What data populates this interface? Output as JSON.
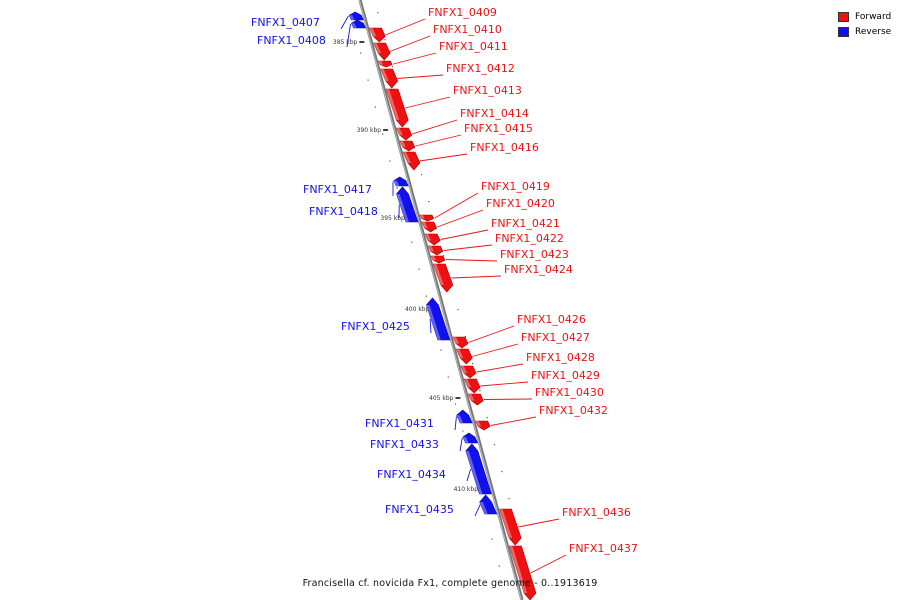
{
  "legend": {
    "forward_label": "Forward",
    "reverse_label": "Reverse",
    "forward_color": "#ee1111",
    "reverse_color": "#1111ee"
  },
  "caption": "Francisella cf. novicida Fx1, complete genome - 0..1913619",
  "ticks": [
    "385 kbp",
    "390 kbp",
    "395 kbp",
    "400 kbp",
    "405 kbp",
    "410 kbp"
  ],
  "genes": [
    {
      "name": "FNFX1_0407",
      "strand": "reverse"
    },
    {
      "name": "FNFX1_0408",
      "strand": "reverse"
    },
    {
      "name": "FNFX1_0409",
      "strand": "forward"
    },
    {
      "name": "FNFX1_0410",
      "strand": "forward"
    },
    {
      "name": "FNFX1_0411",
      "strand": "forward"
    },
    {
      "name": "FNFX1_0412",
      "strand": "forward"
    },
    {
      "name": "FNFX1_0413",
      "strand": "forward"
    },
    {
      "name": "FNFX1_0414",
      "strand": "forward"
    },
    {
      "name": "FNFX1_0415",
      "strand": "forward"
    },
    {
      "name": "FNFX1_0416",
      "strand": "forward"
    },
    {
      "name": "FNFX1_0417",
      "strand": "reverse"
    },
    {
      "name": "FNFX1_0418",
      "strand": "reverse"
    },
    {
      "name": "FNFX1_0419",
      "strand": "forward"
    },
    {
      "name": "FNFX1_0420",
      "strand": "forward"
    },
    {
      "name": "FNFX1_0421",
      "strand": "forward"
    },
    {
      "name": "FNFX1_0422",
      "strand": "forward"
    },
    {
      "name": "FNFX1_0423",
      "strand": "forward"
    },
    {
      "name": "FNFX1_0424",
      "strand": "forward"
    },
    {
      "name": "FNFX1_0425",
      "strand": "reverse"
    },
    {
      "name": "FNFX1_0426",
      "strand": "forward"
    },
    {
      "name": "FNFX1_0427",
      "strand": "forward"
    },
    {
      "name": "FNFX1_0428",
      "strand": "forward"
    },
    {
      "name": "FNFX1_0429",
      "strand": "forward"
    },
    {
      "name": "FNFX1_0430",
      "strand": "forward"
    },
    {
      "name": "FNFX1_0431",
      "strand": "reverse"
    },
    {
      "name": "FNFX1_0432",
      "strand": "forward"
    },
    {
      "name": "FNFX1_0433",
      "strand": "reverse"
    },
    {
      "name": "FNFX1_0434",
      "strand": "reverse"
    },
    {
      "name": "FNFX1_0435",
      "strand": "reverse"
    },
    {
      "name": "FNFX1_0436",
      "strand": "forward"
    },
    {
      "name": "FNFX1_0437",
      "strand": "forward"
    }
  ]
}
